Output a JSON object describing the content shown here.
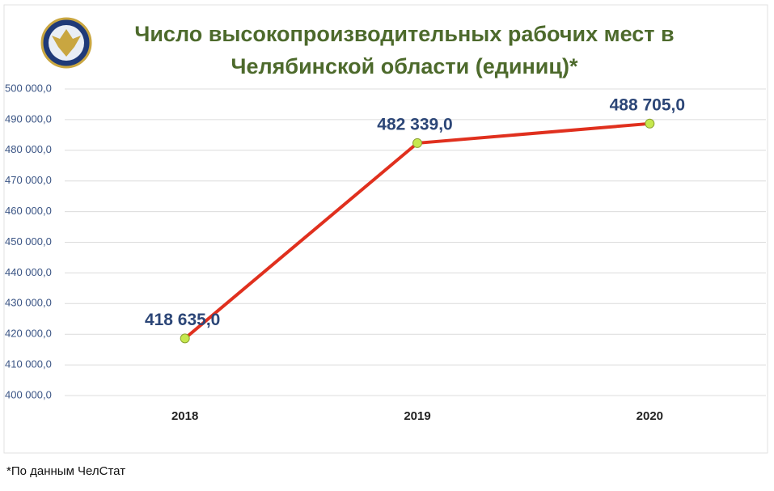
{
  "chart_data": {
    "type": "line",
    "title": "Число высокопроизводительных рабочих мест в Челябинской области (единиц)*",
    "categories": [
      "2018",
      "2019",
      "2020"
    ],
    "series": [
      {
        "name": null,
        "color": "#e0301e",
        "marker_color": "#c6e84e",
        "values": [
          418635,
          482339,
          488705
        ],
        "value_labels": [
          "418 635,0",
          "482 339,0",
          "488 705,0"
        ]
      }
    ],
    "ylim": [
      400000,
      500000
    ],
    "yticks": [
      {
        "value": 400000,
        "label": "400 000,0"
      },
      {
        "value": 410000,
        "label": "410 000,0"
      },
      {
        "value": 420000,
        "label": "420 000,0"
      },
      {
        "value": 430000,
        "label": "430 000,0"
      },
      {
        "value": 440000,
        "label": "440 000,0"
      },
      {
        "value": 450000,
        "label": "450 000,0"
      },
      {
        "value": 460000,
        "label": "460 000,0"
      },
      {
        "value": 470000,
        "label": "470 000,0"
      },
      {
        "value": 480000,
        "label": "480 000,0"
      },
      {
        "value": 490000,
        "label": "490 000,0"
      },
      {
        "value": 500000,
        "label": "500 000,0"
      }
    ],
    "grid": true,
    "footnote": "*По данным ЧелСтат"
  }
}
